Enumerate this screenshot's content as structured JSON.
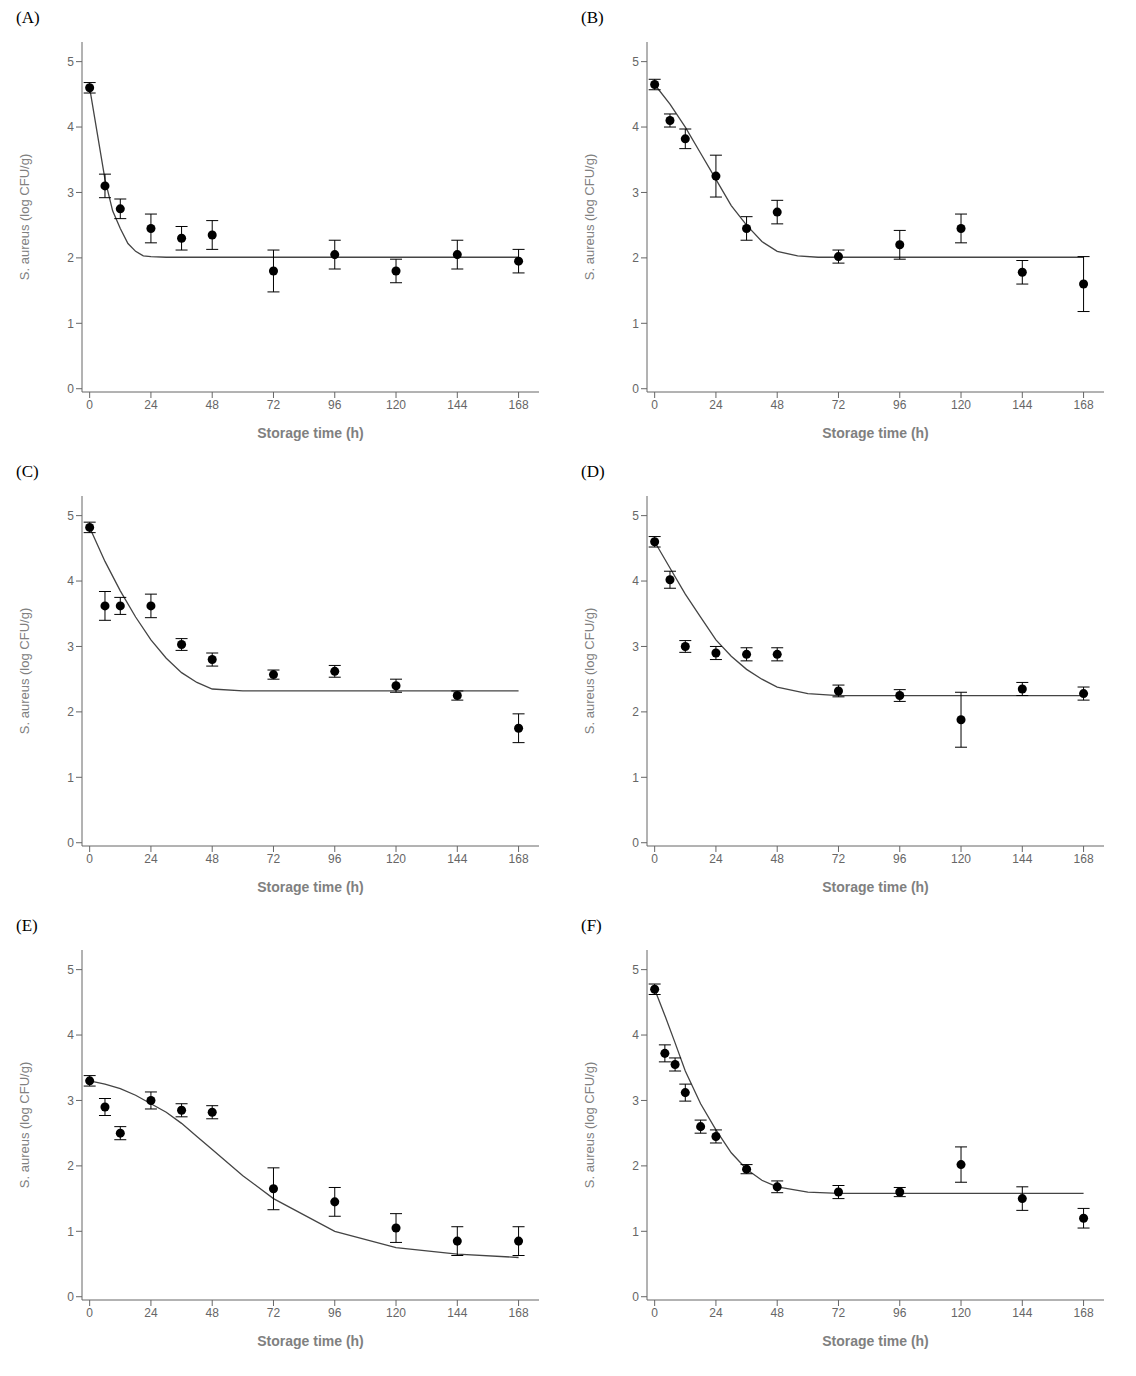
{
  "chart_data": [
    {
      "type": "scatter",
      "title": "(A)",
      "xlabel": "Storage time (h)",
      "ylabel": "S. aureus (log CFU/g)",
      "xlim": [
        -3,
        176
      ],
      "ylim": [
        -0.05,
        5.3
      ],
      "xticks": [
        0,
        24,
        48,
        72,
        96,
        120,
        144,
        168
      ],
      "yticks": [
        0,
        1,
        2,
        3,
        4,
        5
      ],
      "grid": false,
      "series": [
        {
          "type": "line",
          "color": "#444444",
          "line_style": "solid",
          "x": [
            0,
            3,
            6,
            9,
            12,
            15,
            18,
            21,
            24,
            30,
            36,
            48,
            60,
            72,
            96,
            120,
            144,
            168
          ],
          "values": [
            4.6,
            3.9,
            3.2,
            2.72,
            2.45,
            2.22,
            2.1,
            2.03,
            2.02,
            2.01,
            2.01,
            2.01,
            2.01,
            2.01,
            2.01,
            2.01,
            2.01,
            2.01
          ]
        },
        {
          "type": "scatter",
          "color": "#000000",
          "marker": "circle",
          "x": [
            0,
            6,
            12,
            24,
            36,
            48,
            72,
            96,
            120,
            144,
            168
          ],
          "values": [
            4.6,
            3.1,
            2.75,
            2.45,
            2.3,
            2.35,
            1.8,
            2.05,
            1.8,
            2.05,
            1.95
          ],
          "yerr": [
            0.08,
            0.18,
            0.15,
            0.22,
            0.18,
            0.22,
            0.32,
            0.22,
            0.18,
            0.22,
            0.18
          ]
        }
      ]
    },
    {
      "type": "scatter",
      "title": "(B)",
      "xlabel": "Storage time (h)",
      "ylabel": "S. aureus (log CFU/g)",
      "xlim": [
        -3,
        176
      ],
      "ylim": [
        -0.05,
        5.3
      ],
      "xticks": [
        0,
        24,
        48,
        72,
        96,
        120,
        144,
        168
      ],
      "yticks": [
        0,
        1,
        2,
        3,
        4,
        5
      ],
      "grid": false,
      "series": [
        {
          "type": "line",
          "color": "#444444",
          "line_style": "solid",
          "x": [
            0,
            6,
            12,
            18,
            24,
            30,
            36,
            42,
            48,
            56,
            64,
            72,
            96,
            120,
            144,
            168
          ],
          "values": [
            4.65,
            4.35,
            4.0,
            3.6,
            3.2,
            2.8,
            2.5,
            2.25,
            2.1,
            2.03,
            2.01,
            2.01,
            2.01,
            2.01,
            2.01,
            2.01
          ]
        },
        {
          "type": "scatter",
          "color": "#000000",
          "marker": "circle",
          "x": [
            0,
            6,
            12,
            24,
            36,
            48,
            72,
            96,
            120,
            144,
            168
          ],
          "values": [
            4.65,
            4.1,
            3.82,
            3.25,
            2.45,
            2.7,
            2.02,
            2.2,
            2.45,
            1.78,
            1.6
          ],
          "yerr": [
            0.08,
            0.1,
            0.15,
            0.32,
            0.18,
            0.18,
            0.1,
            0.22,
            0.22,
            0.18,
            0.42
          ]
        }
      ]
    },
    {
      "type": "scatter",
      "title": "(C)",
      "xlabel": "Storage time (h)",
      "ylabel": "S. aureus (log CFU/g)",
      "xlim": [
        -3,
        176
      ],
      "ylim": [
        -0.05,
        5.3
      ],
      "xticks": [
        0,
        24,
        48,
        72,
        96,
        120,
        144,
        168
      ],
      "yticks": [
        0,
        1,
        2,
        3,
        4,
        5
      ],
      "grid": false,
      "series": [
        {
          "type": "line",
          "color": "#444444",
          "line_style": "solid",
          "x": [
            0,
            6,
            12,
            18,
            24,
            30,
            36,
            42,
            48,
            60,
            72,
            96,
            120,
            144,
            168
          ],
          "values": [
            4.82,
            4.3,
            3.85,
            3.45,
            3.1,
            2.82,
            2.6,
            2.45,
            2.35,
            2.32,
            2.32,
            2.32,
            2.32,
            2.32,
            2.32
          ]
        },
        {
          "type": "scatter",
          "color": "#000000",
          "marker": "circle",
          "x": [
            0,
            6,
            12,
            24,
            36,
            48,
            72,
            96,
            120,
            144,
            168
          ],
          "values": [
            4.82,
            3.62,
            3.62,
            3.62,
            3.03,
            2.8,
            2.57,
            2.62,
            2.4,
            2.25,
            1.75
          ],
          "yerr": [
            0.08,
            0.22,
            0.13,
            0.18,
            0.09,
            0.1,
            0.07,
            0.09,
            0.1,
            0.07,
            0.22
          ]
        }
      ]
    },
    {
      "type": "scatter",
      "title": "(D)",
      "xlabel": "Storage time (h)",
      "ylabel": "S. aureus (log CFU/g)",
      "xlim": [
        -3,
        176
      ],
      "ylim": [
        -0.05,
        5.3
      ],
      "xticks": [
        0,
        24,
        48,
        72,
        96,
        120,
        144,
        168
      ],
      "yticks": [
        0,
        1,
        2,
        3,
        4,
        5
      ],
      "grid": false,
      "series": [
        {
          "type": "line",
          "color": "#444444",
          "line_style": "solid",
          "x": [
            0,
            6,
            12,
            18,
            24,
            30,
            36,
            42,
            48,
            60,
            72,
            96,
            120,
            144,
            168
          ],
          "values": [
            4.6,
            4.2,
            3.8,
            3.45,
            3.1,
            2.85,
            2.65,
            2.5,
            2.38,
            2.28,
            2.25,
            2.25,
            2.25,
            2.25,
            2.25
          ]
        },
        {
          "type": "scatter",
          "color": "#000000",
          "marker": "circle",
          "x": [
            0,
            6,
            12,
            24,
            36,
            48,
            72,
            96,
            120,
            144,
            168
          ],
          "values": [
            4.6,
            4.02,
            3.0,
            2.9,
            2.88,
            2.88,
            2.32,
            2.25,
            1.88,
            2.35,
            2.28
          ],
          "yerr": [
            0.08,
            0.13,
            0.09,
            0.1,
            0.1,
            0.1,
            0.09,
            0.09,
            0.42,
            0.1,
            0.1
          ]
        }
      ]
    },
    {
      "type": "scatter",
      "title": "(E)",
      "xlabel": "Storage time (h)",
      "ylabel": "S. aureus (log CFU/g)",
      "xlim": [
        -3,
        176
      ],
      "ylim": [
        -0.05,
        5.3
      ],
      "xticks": [
        0,
        24,
        48,
        72,
        96,
        120,
        144,
        168
      ],
      "yticks": [
        0,
        1,
        2,
        3,
        4,
        5
      ],
      "grid": false,
      "series": [
        {
          "type": "line",
          "color": "#444444",
          "line_style": "solid",
          "x": [
            0,
            6,
            12,
            18,
            24,
            30,
            36,
            42,
            48,
            60,
            72,
            96,
            120,
            144,
            168
          ],
          "values": [
            3.3,
            3.25,
            3.18,
            3.08,
            2.95,
            2.82,
            2.65,
            2.45,
            2.25,
            1.85,
            1.5,
            1.0,
            0.75,
            0.65,
            0.6
          ]
        },
        {
          "type": "scatter",
          "color": "#000000",
          "marker": "circle",
          "x": [
            0,
            6,
            12,
            24,
            36,
            48,
            72,
            96,
            120,
            144,
            168
          ],
          "values": [
            3.3,
            2.9,
            2.5,
            3.0,
            2.85,
            2.82,
            1.65,
            1.45,
            1.05,
            0.85,
            0.85
          ],
          "yerr": [
            0.08,
            0.13,
            0.1,
            0.13,
            0.1,
            0.1,
            0.32,
            0.22,
            0.22,
            0.22,
            0.22
          ]
        }
      ]
    },
    {
      "type": "scatter",
      "title": "(F)",
      "xlabel": "Storage time (h)",
      "ylabel": "S. aureus (log CFU/g)",
      "xlim": [
        -3,
        176
      ],
      "ylim": [
        -0.05,
        5.3
      ],
      "xticks": [
        0,
        24,
        48,
        72,
        96,
        120,
        144,
        168
      ],
      "yticks": [
        0,
        1,
        2,
        3,
        4,
        5
      ],
      "grid": false,
      "series": [
        {
          "type": "line",
          "color": "#444444",
          "line_style": "solid",
          "x": [
            0,
            4,
            8,
            12,
            18,
            24,
            30,
            36,
            42,
            48,
            60,
            72,
            96,
            120,
            144,
            168
          ],
          "values": [
            4.7,
            4.3,
            3.88,
            3.45,
            2.95,
            2.55,
            2.2,
            1.95,
            1.78,
            1.68,
            1.6,
            1.58,
            1.58,
            1.58,
            1.58,
            1.58
          ]
        },
        {
          "type": "scatter",
          "color": "#000000",
          "marker": "circle",
          "x": [
            0,
            4,
            8,
            12,
            18,
            24,
            36,
            48,
            72,
            96,
            120,
            144,
            168
          ],
          "values": [
            4.7,
            3.72,
            3.55,
            3.12,
            2.6,
            2.45,
            1.95,
            1.68,
            1.6,
            1.6,
            2.02,
            1.5,
            1.2
          ],
          "yerr": [
            0.08,
            0.13,
            0.1,
            0.13,
            0.1,
            0.1,
            0.07,
            0.09,
            0.1,
            0.07,
            0.27,
            0.18,
            0.15
          ]
        }
      ]
    }
  ]
}
